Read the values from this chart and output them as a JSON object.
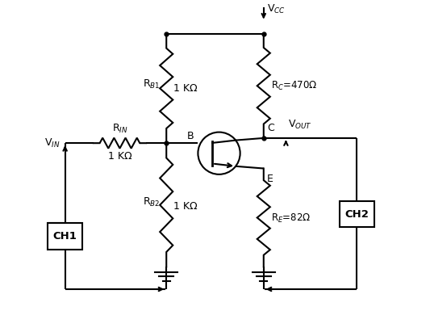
{
  "bg_color": "#ffffff",
  "line_color": "#000000",
  "line_width": 1.5,
  "fig_width": 5.33,
  "fig_height": 4.11,
  "dpi": 100,
  "labels": {
    "VCC": "V$_{CC}$",
    "VIN": "V$_{IN}$",
    "VOUT": "V$_{OUT}$",
    "RB1": "R$_{B1}$",
    "RB2": "R$_{B2}$",
    "RIN": "R$_{IN}$",
    "RC_val": "R$_{C}$=470Ω",
    "RE_val": "R$_{E}$=82Ω",
    "RB1_val": "1 KΩ",
    "RB2_val": "1 KΩ",
    "RIN_val": "1 KΩ",
    "B": "B",
    "C": "C",
    "E": "E",
    "CH1": "CH1",
    "CH2": "CH2"
  }
}
